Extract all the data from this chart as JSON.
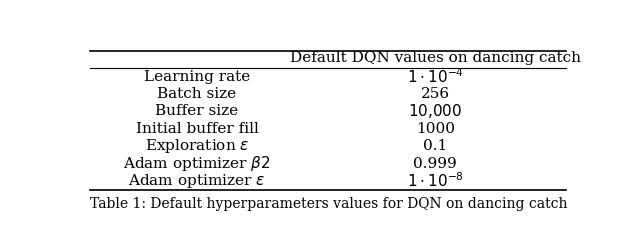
{
  "title": "Default DQN values on dancing catch",
  "caption": "Table 1: Default hyperparameters values for DQN on dancing catch",
  "rows": [
    [
      "Learning rate",
      "$1 \\cdot 10^{-4}$"
    ],
    [
      "Batch size",
      "256"
    ],
    [
      "Buffer size",
      "$10{,}000$"
    ],
    [
      "Initial buffer fill",
      "1000"
    ],
    [
      "Exploration $\\epsilon$",
      "0.1"
    ],
    [
      "Adam optimizer $\\beta 2$",
      "0.999"
    ],
    [
      "Adam optimizer $\\epsilon$",
      "$1 \\cdot 10^{-8}$"
    ]
  ],
  "col_split": 0.45,
  "background_color": "#ffffff",
  "text_color": "#000000",
  "fontsize": 11,
  "caption_fontsize": 10
}
